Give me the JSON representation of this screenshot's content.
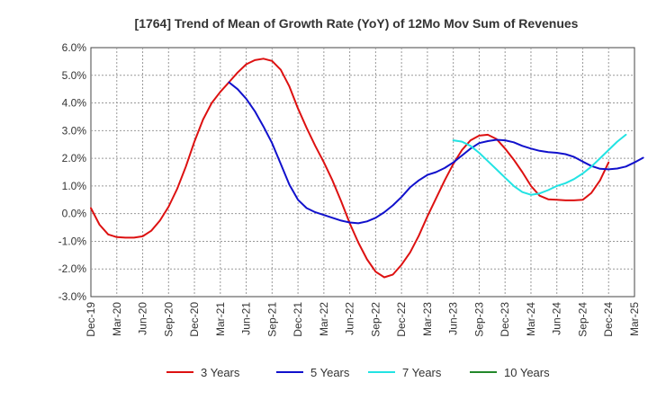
{
  "chart_data": {
    "type": "line",
    "title": "[1764]  Trend of Mean of Growth Rate (YoY) of 12Mo Mov Sum of Revenues",
    "xlabel": "",
    "ylabel": "",
    "ylim": [
      -3.0,
      6.0
    ],
    "y_ticks": [
      "6.0%",
      "5.0%",
      "4.0%",
      "3.0%",
      "2.0%",
      "1.0%",
      "0.0%",
      "-1.0%",
      "-2.0%",
      "-3.0%"
    ],
    "x_ticks": [
      "Dec-19",
      "Mar-20",
      "Jun-20",
      "Sep-20",
      "Dec-20",
      "Mar-21",
      "Jun-21",
      "Sep-21",
      "Dec-21",
      "Mar-22",
      "Jun-22",
      "Sep-22",
      "Dec-22",
      "Mar-23",
      "Jun-23",
      "Sep-23",
      "Dec-23",
      "Mar-24",
      "Jun-24",
      "Sep-24",
      "Dec-24",
      "Mar-25"
    ],
    "grid": true,
    "legend_position": "bottom",
    "series": [
      {
        "name": "3 Years",
        "color": "#dd1111",
        "start_month_index": 0,
        "values": [
          0.2,
          -0.4,
          -0.75,
          -0.85,
          -0.87,
          -0.87,
          -0.82,
          -0.62,
          -0.25,
          0.25,
          0.9,
          1.7,
          2.6,
          3.4,
          4.0,
          4.4,
          4.75,
          5.1,
          5.4,
          5.55,
          5.6,
          5.52,
          5.2,
          4.6,
          3.8,
          3.1,
          2.45,
          1.85,
          1.2,
          0.45,
          -0.35,
          -1.05,
          -1.65,
          -2.1,
          -2.3,
          -2.2,
          -1.85,
          -1.4,
          -0.8,
          -0.1,
          0.55,
          1.2,
          1.8,
          2.3,
          2.65,
          2.82,
          2.85,
          2.7,
          2.35,
          1.95,
          1.5,
          1.0,
          0.65,
          0.52,
          0.5,
          0.48,
          0.48,
          0.5,
          0.75,
          1.2,
          1.85
        ]
      },
      {
        "name": "5 Years",
        "color": "#1111cc",
        "start_month_index": 16,
        "values": [
          4.75,
          4.5,
          4.15,
          3.7,
          3.15,
          2.55,
          1.8,
          1.05,
          0.5,
          0.2,
          0.05,
          -0.05,
          -0.15,
          -0.25,
          -0.32,
          -0.35,
          -0.28,
          -0.15,
          0.05,
          0.3,
          0.6,
          0.95,
          1.2,
          1.4,
          1.5,
          1.65,
          1.85,
          2.1,
          2.35,
          2.55,
          2.62,
          2.67,
          2.65,
          2.58,
          2.45,
          2.35,
          2.27,
          2.22,
          2.2,
          2.15,
          2.05,
          1.88,
          1.72,
          1.62,
          1.6,
          1.63,
          1.7,
          1.85,
          2.02
        ]
      },
      {
        "name": "7 Years",
        "color": "#22e3e3",
        "start_month_index": 42,
        "values": [
          2.65,
          2.6,
          2.45,
          2.2,
          1.9,
          1.6,
          1.3,
          1.0,
          0.78,
          0.68,
          0.73,
          0.85,
          1.0,
          1.1,
          1.25,
          1.45,
          1.7,
          2.0,
          2.3,
          2.6,
          2.85
        ]
      },
      {
        "name": "10 Years",
        "color": "#22882a",
        "start_month_index": 0,
        "values": []
      }
    ]
  }
}
